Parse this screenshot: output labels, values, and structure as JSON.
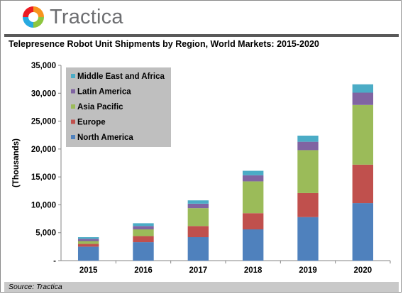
{
  "brand": {
    "name": "Tractica"
  },
  "source": "Source: Tractica",
  "chart_data": {
    "type": "bar",
    "stacked": true,
    "title": "Telepresence Robot Unit Shipments by Region, World Markets: 2015-2020",
    "ylabel": "(Thousands)",
    "xlabel": "",
    "ylim": [
      0,
      35000
    ],
    "yticks": [
      0,
      5000,
      10000,
      15000,
      20000,
      25000,
      30000,
      35000
    ],
    "ytick_labels": [
      "-",
      "5,000",
      "10,000",
      "15,000",
      "20,000",
      "25,000",
      "30,000",
      "35,000"
    ],
    "categories": [
      "2015",
      "2016",
      "2017",
      "2018",
      "2019",
      "2020"
    ],
    "series": [
      {
        "name": "North America",
        "color": "#4f81bd",
        "values": [
          2500,
          3300,
          4200,
          5600,
          7800,
          10300
        ]
      },
      {
        "name": "Europe",
        "color": "#c0504d",
        "values": [
          500,
          1100,
          2000,
          2900,
          4300,
          6900
        ]
      },
      {
        "name": "Asia Pacific",
        "color": "#9bbb59",
        "values": [
          500,
          1200,
          3200,
          5700,
          7700,
          10700
        ]
      },
      {
        "name": "Latin America",
        "color": "#8064a2",
        "values": [
          400,
          600,
          800,
          1100,
          1500,
          2200
        ]
      },
      {
        "name": "Middle East and Africa",
        "color": "#4bacc6",
        "values": [
          300,
          500,
          600,
          800,
          1100,
          1500
        ]
      }
    ],
    "legend_position": "top-left",
    "legend_order": [
      "Middle East and Africa",
      "Latin America",
      "Asia Pacific",
      "Europe",
      "North America"
    ],
    "grid": false
  }
}
